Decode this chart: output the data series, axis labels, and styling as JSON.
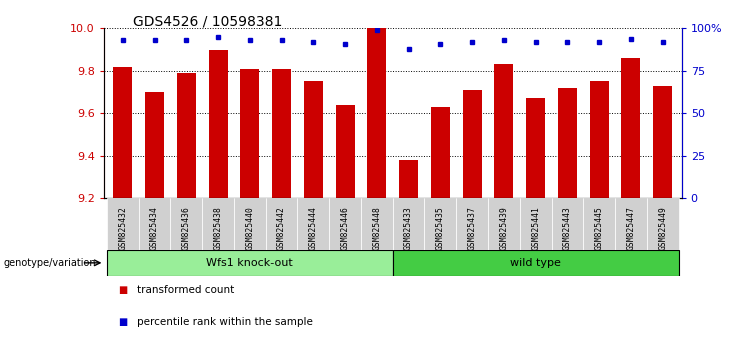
{
  "title": "GDS4526 / 10598381",
  "samples": [
    "GSM825432",
    "GSM825434",
    "GSM825436",
    "GSM825438",
    "GSM825440",
    "GSM825442",
    "GSM825444",
    "GSM825446",
    "GSM825448",
    "GSM825433",
    "GSM825435",
    "GSM825437",
    "GSM825439",
    "GSM825441",
    "GSM825443",
    "GSM825445",
    "GSM825447",
    "GSM825449"
  ],
  "bar_values": [
    9.82,
    9.7,
    9.79,
    9.9,
    9.81,
    9.81,
    9.75,
    9.64,
    10.0,
    9.38,
    9.63,
    9.71,
    9.83,
    9.67,
    9.72,
    9.75,
    9.86,
    9.73
  ],
  "percentile_values": [
    93,
    93,
    93,
    95,
    93,
    93,
    92,
    91,
    99,
    88,
    91,
    92,
    93,
    92,
    92,
    92,
    94,
    92
  ],
  "bar_color": "#cc0000",
  "percentile_color": "#0000cc",
  "ylim_left": [
    9.2,
    10.0
  ],
  "ylim_right": [
    0,
    100
  ],
  "yticks_left": [
    9.2,
    9.4,
    9.6,
    9.8,
    10.0
  ],
  "yticks_right": [
    0,
    25,
    50,
    75,
    100
  ],
  "ytick_labels_right": [
    "0",
    "25",
    "50",
    "75",
    "100%"
  ],
  "group1_label": "Wfs1 knock-out",
  "group2_label": "wild type",
  "group1_color": "#99ee99",
  "group2_color": "#44cc44",
  "group1_n": 9,
  "group2_n": 9,
  "legend_bar_label": "transformed count",
  "legend_pct_label": "percentile rank within the sample",
  "genotype_label": "genotype/variation",
  "background_color": "#ffffff",
  "grid_color": "#000000",
  "tick_label_color_left": "#cc0000",
  "tick_label_color_right": "#0000cc",
  "bar_bottom": 9.2
}
